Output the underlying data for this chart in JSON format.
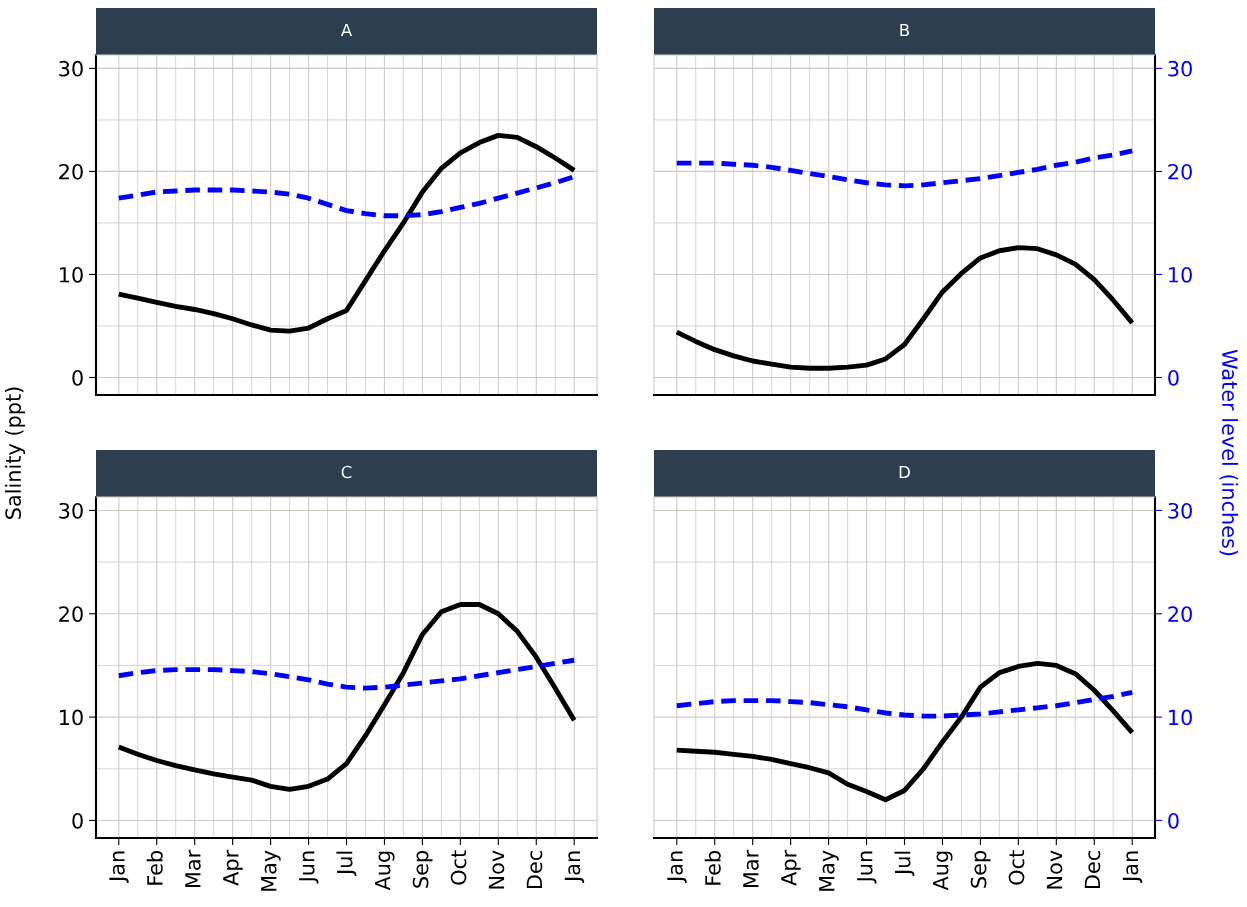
{
  "chart_data": [
    {
      "type": "line",
      "title": "A",
      "ylabel": "Salinity (ppt)",
      "categories": [
        null,
        null,
        null,
        null,
        null,
        null,
        null,
        null,
        null,
        null,
        null,
        null,
        null,
        null,
        null,
        null,
        null,
        null,
        null,
        null,
        null,
        null,
        null,
        null,
        null
      ],
      "ylim": [
        -1.7,
        31.3
      ],
      "yticks": [
        0,
        10,
        20,
        30
      ],
      "grid": true,
      "tick_labels": "y",
      "series": [
        {
          "color": "#000000",
          "line_style": "solid",
          "values": [
            8.1,
            7.7,
            7.3,
            6.9,
            6.6,
            6.2,
            5.7,
            5.1,
            4.6,
            4.5,
            4.8,
            5.7,
            6.5,
            9.4,
            12.3,
            15.0,
            18.0,
            20.3,
            21.8,
            22.8,
            23.5,
            23.3,
            22.4,
            21.3,
            20.1
          ]
        },
        {
          "color": "#0000ff",
          "line_style": "dashed",
          "values": [
            17.4,
            17.7,
            18.0,
            18.1,
            18.2,
            18.2,
            18.2,
            18.1,
            18.0,
            17.8,
            17.4,
            16.8,
            16.2,
            15.9,
            15.7,
            15.7,
            15.8,
            16.1,
            16.5,
            16.9,
            17.4,
            17.9,
            18.4,
            18.9,
            19.5
          ]
        }
      ]
    },
    {
      "type": "line",
      "title": "B",
      "ylabel": "Water level (inches)",
      "categories": [
        null,
        null,
        null,
        null,
        null,
        null,
        null,
        null,
        null,
        null,
        null,
        null,
        null,
        null,
        null,
        null,
        null,
        null,
        null,
        null,
        null,
        null,
        null,
        null,
        null
      ],
      "ylim": [
        -1.7,
        31.3
      ],
      "yticks": [
        0,
        10,
        20,
        30
      ],
      "grid": true,
      "tick_labels": "y",
      "series": [
        {
          "color": "#000000",
          "line_style": "solid",
          "values": [
            4.4,
            3.5,
            2.7,
            2.1,
            1.6,
            1.3,
            1.0,
            0.9,
            0.9,
            1.0,
            1.2,
            1.8,
            3.2,
            5.7,
            8.3,
            10.1,
            11.6,
            12.3,
            12.6,
            12.5,
            11.9,
            11.0,
            9.5,
            7.5,
            5.3
          ]
        },
        {
          "color": "#0000ff",
          "line_style": "dashed",
          "values": [
            20.8,
            20.8,
            20.8,
            20.7,
            20.6,
            20.4,
            20.1,
            19.8,
            19.5,
            19.2,
            18.9,
            18.7,
            18.6,
            18.7,
            18.9,
            19.1,
            19.3,
            19.6,
            19.9,
            20.2,
            20.6,
            20.9,
            21.3,
            21.6,
            22.0
          ]
        }
      ]
    },
    {
      "type": "line",
      "title": "C",
      "categories": [
        "Jan",
        null,
        "Feb",
        null,
        "Mar",
        null,
        "Apr",
        null,
        "May",
        null,
        "Jun",
        null,
        "Jul",
        null,
        "Aug",
        null,
        "Sep",
        null,
        "Oct",
        null,
        "Nov",
        null,
        "Dec",
        null,
        "Jan"
      ],
      "ylim": [
        -1.7,
        31.3
      ],
      "yticks": [
        0,
        10,
        20,
        30
      ],
      "grid": true,
      "series": [
        {
          "color": "#000000",
          "line_style": "solid",
          "values": [
            7.1,
            6.4,
            5.8,
            5.3,
            4.9,
            4.5,
            4.2,
            3.9,
            3.3,
            3.0,
            3.3,
            4.0,
            5.5,
            8.2,
            11.2,
            14.3,
            18.0,
            20.2,
            20.9,
            20.9,
            20.0,
            18.3,
            15.8,
            12.8,
            9.7
          ]
        },
        {
          "color": "#0000ff",
          "line_style": "dashed",
          "values": [
            14.0,
            14.3,
            14.5,
            14.6,
            14.6,
            14.6,
            14.5,
            14.4,
            14.2,
            13.9,
            13.6,
            13.2,
            12.9,
            12.8,
            12.9,
            13.1,
            13.3,
            13.5,
            13.7,
            14.0,
            14.3,
            14.6,
            14.9,
            15.2,
            15.5
          ]
        }
      ]
    },
    {
      "type": "line",
      "title": "D",
      "categories": [
        "Jan",
        null,
        "Feb",
        null,
        "Mar",
        null,
        "Apr",
        null,
        "May",
        null,
        "Jun",
        null,
        "Jul",
        null,
        "Aug",
        null,
        "Sep",
        null,
        "Oct",
        null,
        "Nov",
        null,
        "Dec",
        null,
        "Jan"
      ],
      "ylim": [
        -1.7,
        31.3
      ],
      "yticks": [
        0,
        10,
        20,
        30
      ],
      "grid": true,
      "series": [
        {
          "color": "#000000",
          "line_style": "solid",
          "values": [
            6.8,
            6.7,
            6.6,
            6.4,
            6.2,
            5.9,
            5.5,
            5.1,
            4.6,
            3.5,
            2.8,
            2.0,
            2.9,
            5.0,
            7.6,
            10.0,
            12.9,
            14.3,
            14.9,
            15.2,
            15.0,
            14.2,
            12.6,
            10.6,
            8.5
          ]
        },
        {
          "color": "#0000ff",
          "line_style": "dashed",
          "values": [
            11.1,
            11.3,
            11.5,
            11.6,
            11.6,
            11.6,
            11.5,
            11.4,
            11.2,
            11.0,
            10.7,
            10.4,
            10.2,
            10.1,
            10.1,
            10.2,
            10.3,
            10.5,
            10.7,
            10.9,
            11.1,
            11.4,
            11.7,
            12.0,
            12.4
          ]
        }
      ]
    }
  ]
}
